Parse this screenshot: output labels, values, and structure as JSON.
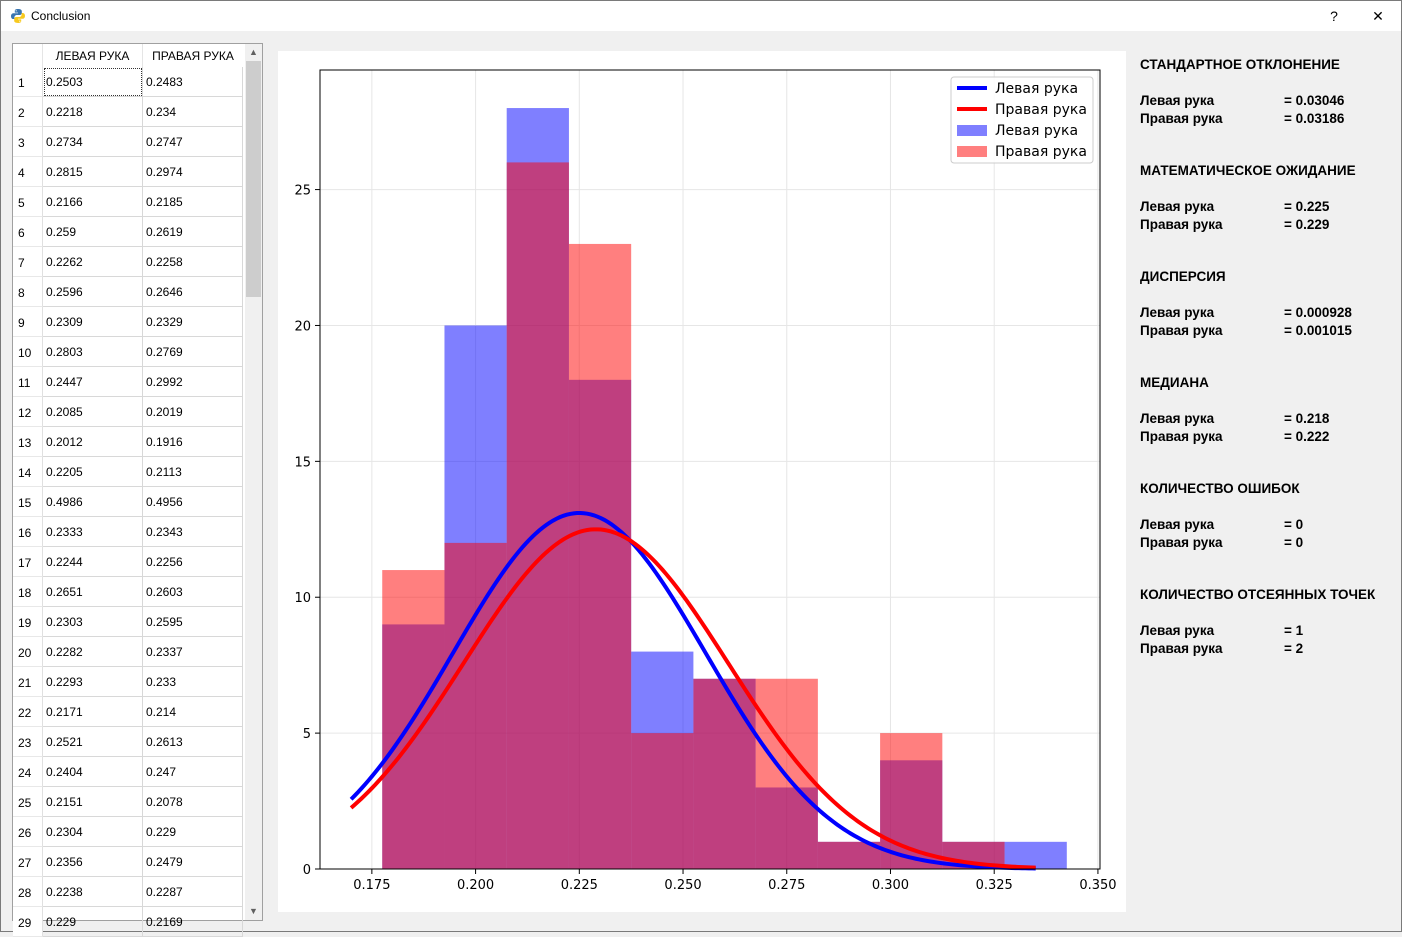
{
  "window": {
    "title": "Conclusion",
    "help_label": "?",
    "close_label": "✕"
  },
  "table": {
    "headers": [
      "ЛЕВАЯ РУКА",
      "ПРАВАЯ РУКА"
    ],
    "rows": [
      [
        "1",
        "0.2503",
        "0.2483"
      ],
      [
        "2",
        "0.2218",
        "0.234"
      ],
      [
        "3",
        "0.2734",
        "0.2747"
      ],
      [
        "4",
        "0.2815",
        "0.2974"
      ],
      [
        "5",
        "0.2166",
        "0.2185"
      ],
      [
        "6",
        "0.259",
        "0.2619"
      ],
      [
        "7",
        "0.2262",
        "0.2258"
      ],
      [
        "8",
        "0.2596",
        "0.2646"
      ],
      [
        "9",
        "0.2309",
        "0.2329"
      ],
      [
        "10",
        "0.2803",
        "0.2769"
      ],
      [
        "11",
        "0.2447",
        "0.2992"
      ],
      [
        "12",
        "0.2085",
        "0.2019"
      ],
      [
        "13",
        "0.2012",
        "0.1916"
      ],
      [
        "14",
        "0.2205",
        "0.2113"
      ],
      [
        "15",
        "0.4986",
        "0.4956"
      ],
      [
        "16",
        "0.2333",
        "0.2343"
      ],
      [
        "17",
        "0.2244",
        "0.2256"
      ],
      [
        "18",
        "0.2651",
        "0.2603"
      ],
      [
        "19",
        "0.2303",
        "0.2595"
      ],
      [
        "20",
        "0.2282",
        "0.2337"
      ],
      [
        "21",
        "0.2293",
        "0.233"
      ],
      [
        "22",
        "0.2171",
        "0.214"
      ],
      [
        "23",
        "0.2521",
        "0.2613"
      ],
      [
        "24",
        "0.2404",
        "0.247"
      ],
      [
        "25",
        "0.2151",
        "0.2078"
      ],
      [
        "26",
        "0.2304",
        "0.229"
      ],
      [
        "27",
        "0.2356",
        "0.2479"
      ],
      [
        "28",
        "0.2238",
        "0.2287"
      ],
      [
        "29",
        "0.229",
        "0.2169"
      ]
    ]
  },
  "stats": [
    {
      "title": "СТАНДАРТНОЕ ОТКЛОНЕНИЕ",
      "left_label": "Левая рука",
      "left_value": "= 0.03046",
      "right_label": "Правая рука",
      "right_value": "= 0.03186"
    },
    {
      "title": "МАТЕМАТИЧЕСКОЕ ОЖИДАНИЕ",
      "left_label": "Левая рука",
      "left_value": "= 0.225",
      "right_label": "Правая рука",
      "right_value": "= 0.229"
    },
    {
      "title": "ДИСПЕРСИЯ",
      "left_label": "Левая рука",
      "left_value": "= 0.000928",
      "right_label": "Правая рука",
      "right_value": "= 0.001015"
    },
    {
      "title": "МЕДИАНА",
      "left_label": "Левая рука",
      "left_value": "= 0.218",
      "right_label": "Правая рука",
      "right_value": "= 0.222"
    },
    {
      "title": "КОЛИЧЕСТВО ОШИБОК",
      "left_label": "Левая рука",
      "left_value": "= 0",
      "right_label": "Правая рука",
      "right_value": "= 0"
    },
    {
      "title": "КОЛИЧЕСТВО ОТСЕЯННЫХ ТОЧЕК",
      "left_label": "Левая рука",
      "left_value": "= 1",
      "right_label": "Правая рука",
      "right_value": "= 2"
    }
  ],
  "chart_data": {
    "type": "bar",
    "xlim": [
      0.1625,
      0.3505
    ],
    "ylim": [
      0,
      29.4
    ],
    "xticks": [
      "0.175",
      "0.200",
      "0.225",
      "0.250",
      "0.275",
      "0.300",
      "0.325",
      "0.350"
    ],
    "yticks": [
      "0",
      "5",
      "10",
      "15",
      "20",
      "25"
    ],
    "grid": true,
    "legend_position": "top-right",
    "legend": [
      "Левая рука",
      "Правая рука",
      "Левая рука",
      "Правая рука"
    ],
    "histograms": [
      {
        "name": "Левая рука",
        "color": "#0000ff",
        "opacity": 0.5,
        "bins": [
          [
            0.1775,
            0.1925,
            9
          ],
          [
            0.1925,
            0.2075,
            20
          ],
          [
            0.2075,
            0.2225,
            28
          ],
          [
            0.2225,
            0.2375,
            18
          ],
          [
            0.2375,
            0.2525,
            8
          ],
          [
            0.2525,
            0.2675,
            7
          ],
          [
            0.2675,
            0.2825,
            3
          ],
          [
            0.2825,
            0.2975,
            1
          ],
          [
            0.2975,
            0.3125,
            4
          ],
          [
            0.3125,
            0.3275,
            1
          ],
          [
            0.3275,
            0.3425,
            1
          ]
        ]
      },
      {
        "name": "Правая рука",
        "color": "#ff0000",
        "opacity": 0.5,
        "bins": [
          [
            0.1775,
            0.1925,
            11
          ],
          [
            0.1925,
            0.2075,
            12
          ],
          [
            0.2075,
            0.2225,
            26
          ],
          [
            0.2225,
            0.2375,
            23
          ],
          [
            0.2375,
            0.2525,
            5
          ],
          [
            0.2525,
            0.2675,
            7
          ],
          [
            0.2675,
            0.2825,
            7
          ],
          [
            0.2825,
            0.2975,
            1
          ],
          [
            0.2975,
            0.3125,
            5
          ],
          [
            0.3125,
            0.3275,
            1
          ]
        ]
      }
    ],
    "curves": [
      {
        "name": "Левая рука",
        "color": "#0000ff",
        "type": "normal",
        "mean": 0.225,
        "std": 0.03046,
        "peak": 13.1,
        "x_range": [
          0.17,
          0.335
        ]
      },
      {
        "name": "Правая рука",
        "color": "#ff0000",
        "type": "normal",
        "mean": 0.229,
        "std": 0.03186,
        "peak": 12.5,
        "x_range": [
          0.17,
          0.335
        ]
      }
    ]
  }
}
